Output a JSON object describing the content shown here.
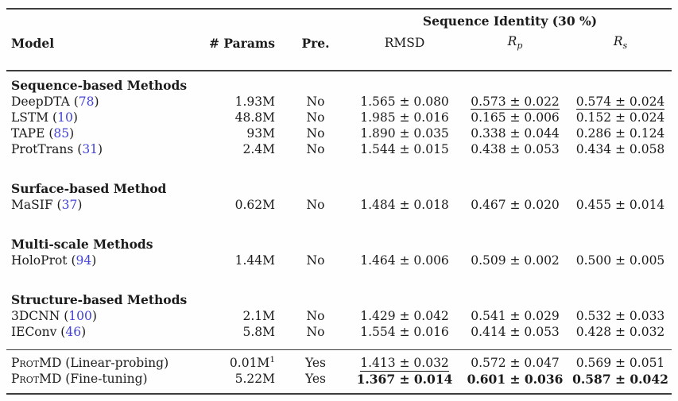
{
  "colors": {
    "text": "#1b1b1b",
    "citation": "#4343d6",
    "rule": "#3d3d3d",
    "background": "#fefefe"
  },
  "header": {
    "group": "Sequence Identity (30 %)",
    "model": "Model",
    "params": "# Params",
    "pretrain": "Pre.",
    "metrics": [
      {
        "label": "RMSD"
      },
      {
        "base": "R",
        "sub": "p"
      },
      {
        "base": "R",
        "sub": "s"
      }
    ]
  },
  "sections": [
    {
      "heading": "Sequence-based Methods",
      "rows": [
        {
          "model": "DeepDTA",
          "cite": "78",
          "params": "1.93M",
          "pre": "No",
          "metrics": [
            {
              "v": "1.565 ± 0.080"
            },
            {
              "v": "0.573 ± 0.022",
              "u": true
            },
            {
              "v": "0.574 ± 0.024",
              "u": true
            }
          ]
        },
        {
          "model": "LSTM",
          "cite": "10",
          "params": "48.8M",
          "pre": "No",
          "metrics": [
            {
              "v": "1.985 ± 0.016"
            },
            {
              "v": "0.165 ± 0.006"
            },
            {
              "v": "0.152 ± 0.024"
            }
          ]
        },
        {
          "model": "TAPE",
          "cite": "85",
          "params": "93M",
          "pre": "No",
          "metrics": [
            {
              "v": "1.890 ± 0.035"
            },
            {
              "v": "0.338 ± 0.044"
            },
            {
              "v": "0.286 ± 0.124"
            }
          ]
        },
        {
          "model": "ProtTrans",
          "cite": "31",
          "params": "2.4M",
          "pre": "No",
          "metrics": [
            {
              "v": "1.544 ± 0.015"
            },
            {
              "v": "0.438 ± 0.053"
            },
            {
              "v": "0.434 ± 0.058"
            }
          ]
        }
      ]
    },
    {
      "heading": "Surface-based Method",
      "rows": [
        {
          "model": "MaSIF",
          "cite": "37",
          "params": "0.62M",
          "pre": "No",
          "metrics": [
            {
              "v": "1.484 ± 0.018"
            },
            {
              "v": "0.467 ± 0.020"
            },
            {
              "v": "0.455 ± 0.014"
            }
          ]
        }
      ]
    },
    {
      "heading": "Multi-scale Methods",
      "rows": [
        {
          "model": "HoloProt",
          "cite": "94",
          "params": "1.44M",
          "pre": "No",
          "metrics": [
            {
              "v": "1.464 ± 0.006"
            },
            {
              "v": "0.509 ± 0.002"
            },
            {
              "v": "0.500 ± 0.005"
            }
          ]
        }
      ]
    },
    {
      "heading": "Structure-based Methods",
      "rows": [
        {
          "model": "3DCNN",
          "cite": "100",
          "params": "2.1M",
          "pre": "No",
          "metrics": [
            {
              "v": "1.429 ± 0.042"
            },
            {
              "v": "0.541 ± 0.029"
            },
            {
              "v": "0.532 ± 0.033"
            }
          ]
        },
        {
          "model": "IEConv",
          "cite": "46",
          "params": "5.8M",
          "pre": "No",
          "metrics": [
            {
              "v": "1.554 ± 0.016"
            },
            {
              "v": "0.414 ± 0.053"
            },
            {
              "v": "0.428 ± 0.032"
            }
          ]
        }
      ]
    }
  ],
  "footer_rows": [
    {
      "model_sc": "Prot",
      "model_rest": "MD (Linear-probing)",
      "params": "0.01M",
      "params_sup": "1",
      "pre": "Yes",
      "metrics": [
        {
          "v": "1.413 ± 0.032",
          "u": true
        },
        {
          "v": "0.572 ± 0.047"
        },
        {
          "v": "0.569 ± 0.051"
        }
      ]
    },
    {
      "model_sc": "Prot",
      "model_rest": "MD (Fine-tuning)",
      "params": "5.22M",
      "pre": "Yes",
      "metrics": [
        {
          "v": "1.367 ± 0.014",
          "b": true
        },
        {
          "v": "0.601 ± 0.036",
          "b": true
        },
        {
          "v": "0.587 ± 0.042",
          "b": true
        }
      ]
    }
  ]
}
